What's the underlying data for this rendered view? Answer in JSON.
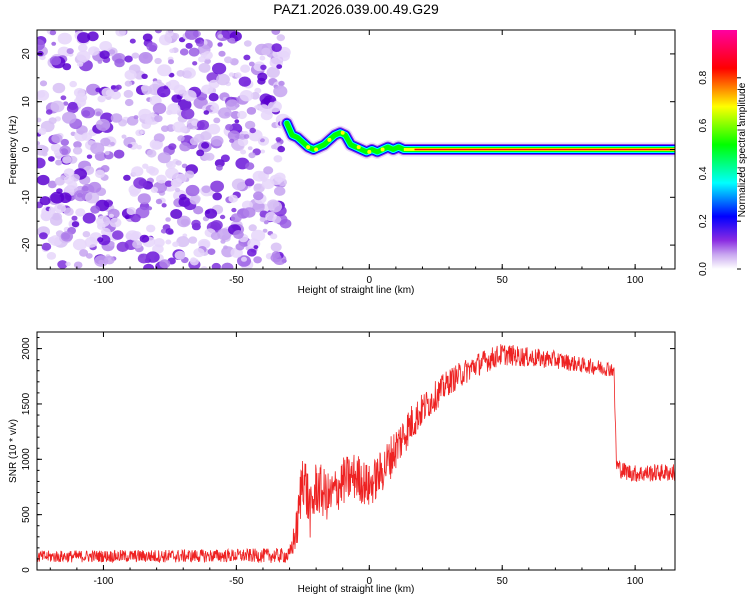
{
  "title": "PAZ1.2026.039.00.49.G29",
  "chart_data": [
    {
      "type": "heatmap",
      "xlabel": "Height of straight line (km)",
      "ylabel": "Frequency (Hz)",
      "xlim": [
        -125,
        115
      ],
      "ylim": [
        -25,
        25
      ],
      "xticks": [
        -100,
        -50,
        0,
        50,
        100
      ],
      "yticks": [
        -20,
        -10,
        0,
        10,
        20
      ],
      "colorbar": {
        "label": "Normalized spectral amplitude",
        "range": [
          0,
          1
        ],
        "ticks": [
          0.0,
          0.2,
          0.4,
          0.6,
          0.8
        ],
        "colors": [
          "#ffffff",
          "#8a2be2",
          "#0000ff",
          "#00ffff",
          "#00ff00",
          "#ffff00",
          "#ff0000",
          "#ff00a0"
        ]
      },
      "noise_region_x": [
        -125,
        -31
      ],
      "ridge": {
        "x": [
          -31,
          -29,
          -27,
          -25,
          -23,
          -21,
          -19,
          -17,
          -15,
          -13,
          -11,
          -9,
          -7,
          -5,
          -3,
          -1,
          1,
          3,
          5,
          7,
          9,
          11,
          13,
          115
        ],
        "freq": [
          5.5,
          3.0,
          2.5,
          1.5,
          0.5,
          0.0,
          0.5,
          1.0,
          2.0,
          3.0,
          3.5,
          3.0,
          1.0,
          0.5,
          0.0,
          -0.5,
          0.0,
          -0.5,
          0.0,
          0.5,
          0.0,
          0.5,
          0.0,
          0.0
        ]
      },
      "grid": false,
      "legend": "colorbar-right"
    },
    {
      "type": "line",
      "xlabel": "Height of straight line (km)",
      "ylabel": "SNR (10 * v/v)",
      "xlim": [
        -125,
        115
      ],
      "ylim": [
        0,
        2150
      ],
      "xticks": [
        -100,
        -50,
        0,
        50,
        100
      ],
      "yticks": [
        0,
        500,
        1000,
        1500,
        2000
      ],
      "color": "#ee2222",
      "x": [
        -125,
        -100,
        -75,
        -50,
        -30,
        -27,
        -25,
        -22,
        -20,
        -15,
        -10,
        -5,
        0,
        5,
        10,
        15,
        20,
        30,
        40,
        50,
        60,
        70,
        80,
        90,
        92,
        93,
        95,
        100,
        110,
        115
      ],
      "y": [
        120,
        125,
        125,
        130,
        130,
        400,
        900,
        500,
        750,
        650,
        800,
        850,
        750,
        900,
        1100,
        1300,
        1450,
        1700,
        1850,
        1950,
        1920,
        1900,
        1850,
        1820,
        1810,
        950,
        900,
        870,
        880,
        880
      ],
      "noise_amplitude": [
        55,
        55,
        60,
        60,
        70,
        200,
        300,
        250,
        250,
        220,
        220,
        220,
        200,
        200,
        200,
        180,
        150,
        120,
        110,
        100,
        90,
        80,
        70,
        70,
        70,
        80,
        80,
        80,
        80,
        80
      ],
      "grid": false
    }
  ]
}
